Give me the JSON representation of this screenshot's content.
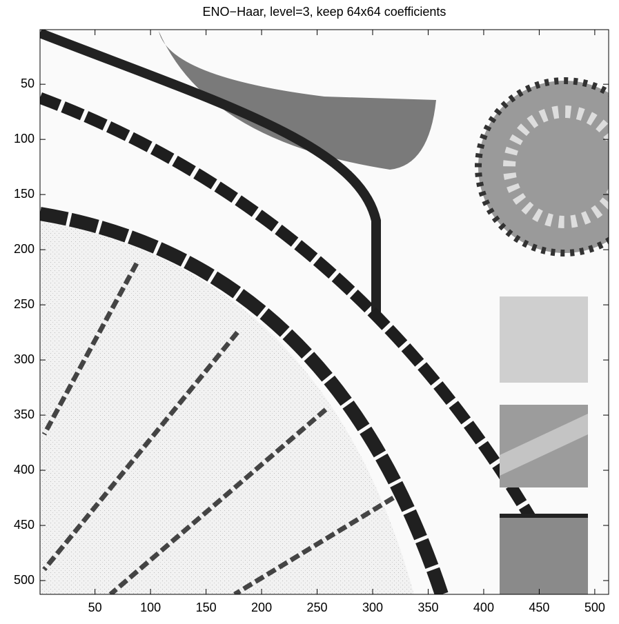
{
  "chart_data": {
    "type": "image",
    "title": "ENO−Haar, level=3, keep 64x64 coefficients",
    "xlim": [
      0.5,
      512.5
    ],
    "ylim": [
      512.5,
      0.5
    ],
    "xticks": [
      50,
      100,
      150,
      200,
      250,
      300,
      350,
      400,
      450,
      500
    ],
    "yticks": [
      50,
      100,
      150,
      200,
      250,
      300,
      350,
      400,
      450,
      500
    ]
  }
}
